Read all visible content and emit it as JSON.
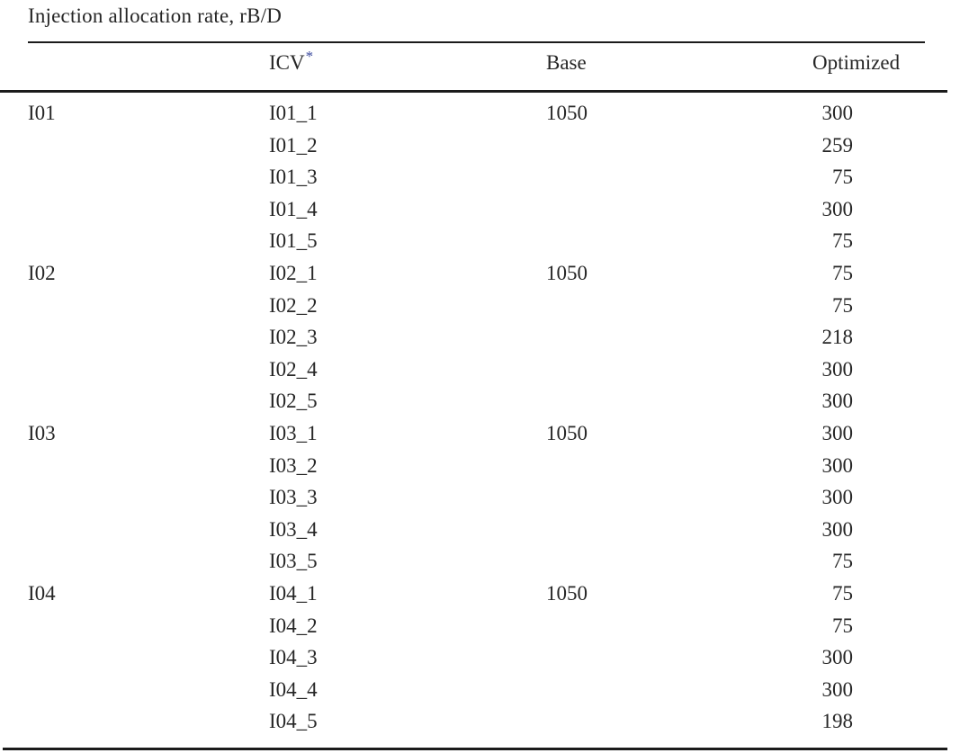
{
  "colors": {
    "text": "#262626",
    "rule": "#1b1b1b",
    "footnote_star": "#3b4a9e"
  },
  "table": {
    "title": "Injection allocation rate, rB/D",
    "headers": {
      "icv": "ICV",
      "icv_footnote_marker": "*",
      "base": "Base",
      "optimized": "Optimized"
    },
    "groups": [
      {
        "name": "I01",
        "base": "1050",
        "icvs": [
          {
            "icv": "I01_1",
            "optimized": "300"
          },
          {
            "icv": "I01_2",
            "optimized": "259"
          },
          {
            "icv": "I01_3",
            "optimized": "75"
          },
          {
            "icv": "I01_4",
            "optimized": "300"
          },
          {
            "icv": "I01_5",
            "optimized": "75"
          }
        ]
      },
      {
        "name": "I02",
        "base": "1050",
        "icvs": [
          {
            "icv": "I02_1",
            "optimized": "75"
          },
          {
            "icv": "I02_2",
            "optimized": "75"
          },
          {
            "icv": "I02_3",
            "optimized": "218"
          },
          {
            "icv": "I02_4",
            "optimized": "300"
          },
          {
            "icv": "I02_5",
            "optimized": "300"
          }
        ]
      },
      {
        "name": "I03",
        "base": "1050",
        "icvs": [
          {
            "icv": "I03_1",
            "optimized": "300"
          },
          {
            "icv": "I03_2",
            "optimized": "300"
          },
          {
            "icv": "I03_3",
            "optimized": "300"
          },
          {
            "icv": "I03_4",
            "optimized": "300"
          },
          {
            "icv": "I03_5",
            "optimized": "75"
          }
        ]
      },
      {
        "name": "I04",
        "base": "1050",
        "icvs": [
          {
            "icv": "I04_1",
            "optimized": "75"
          },
          {
            "icv": "I04_2",
            "optimized": "75"
          },
          {
            "icv": "I04_3",
            "optimized": "300"
          },
          {
            "icv": "I04_4",
            "optimized": "300"
          },
          {
            "icv": "I04_5",
            "optimized": "198"
          }
        ]
      }
    ]
  }
}
